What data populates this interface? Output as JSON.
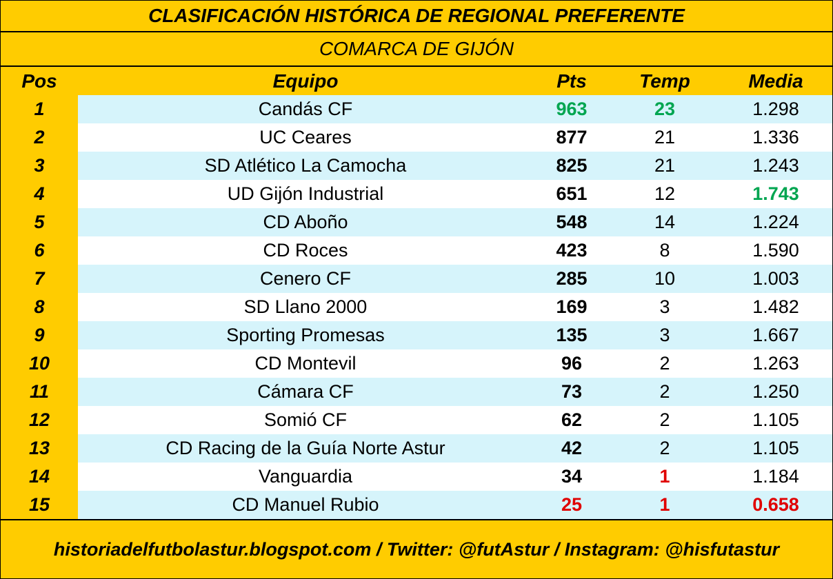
{
  "title": "CLASIFICACIÓN HISTÓRICA DE REGIONAL PREFERENTE",
  "subtitle": "COMARCA DE GIJÓN",
  "headers": {
    "pos": "Pos",
    "team": "Equipo",
    "pts": "Pts",
    "temp": "Temp",
    "media": "Media"
  },
  "rows": [
    {
      "pos": "1",
      "team": "Candás CF",
      "pts": "963",
      "temp": "23",
      "media": "1.298"
    },
    {
      "pos": "2",
      "team": "UC Ceares",
      "pts": "877",
      "temp": "21",
      "media": "1.336"
    },
    {
      "pos": "3",
      "team": "SD Atlético La Camocha",
      "pts": "825",
      "temp": "21",
      "media": "1.243"
    },
    {
      "pos": "4",
      "team": "UD Gijón Industrial",
      "pts": "651",
      "temp": "12",
      "media": "1.743"
    },
    {
      "pos": "5",
      "team": "CD Aboño",
      "pts": "548",
      "temp": "14",
      "media": "1.224"
    },
    {
      "pos": "6",
      "team": "CD Roces",
      "pts": "423",
      "temp": "8",
      "media": "1.590"
    },
    {
      "pos": "7",
      "team": "Cenero CF",
      "pts": "285",
      "temp": "10",
      "media": "1.003"
    },
    {
      "pos": "8",
      "team": "SD Llano 2000",
      "pts": "169",
      "temp": "3",
      "media": "1.482"
    },
    {
      "pos": "9",
      "team": "Sporting Promesas",
      "pts": "135",
      "temp": "3",
      "media": "1.667"
    },
    {
      "pos": "10",
      "team": "CD Montevil",
      "pts": "96",
      "temp": "2",
      "media": "1.263"
    },
    {
      "pos": "11",
      "team": "Cámara CF",
      "pts": "73",
      "temp": "2",
      "media": "1.250"
    },
    {
      "pos": "12",
      "team": "Somió CF",
      "pts": "62",
      "temp": "2",
      "media": "1.105"
    },
    {
      "pos": "13",
      "team": "CD Racing de la Guía Norte Astur",
      "pts": "42",
      "temp": "2",
      "media": "1.105"
    },
    {
      "pos": "14",
      "team": "Vanguardia",
      "pts": "34",
      "temp": "1",
      "media": "1.184"
    },
    {
      "pos": "15",
      "team": "CD Manuel Rubio",
      "pts": "25",
      "temp": "1",
      "media": "0.658"
    }
  ],
  "colors": {
    "highlight_max": "#00A550",
    "highlight_min": "#E00000",
    "row_alt": "#D6F4FB",
    "background": "#FFCC00"
  },
  "footer": "historiadelfutbolastur.blogspot.com / Twitter: @futAstur / Instagram: @hisfutastur"
}
